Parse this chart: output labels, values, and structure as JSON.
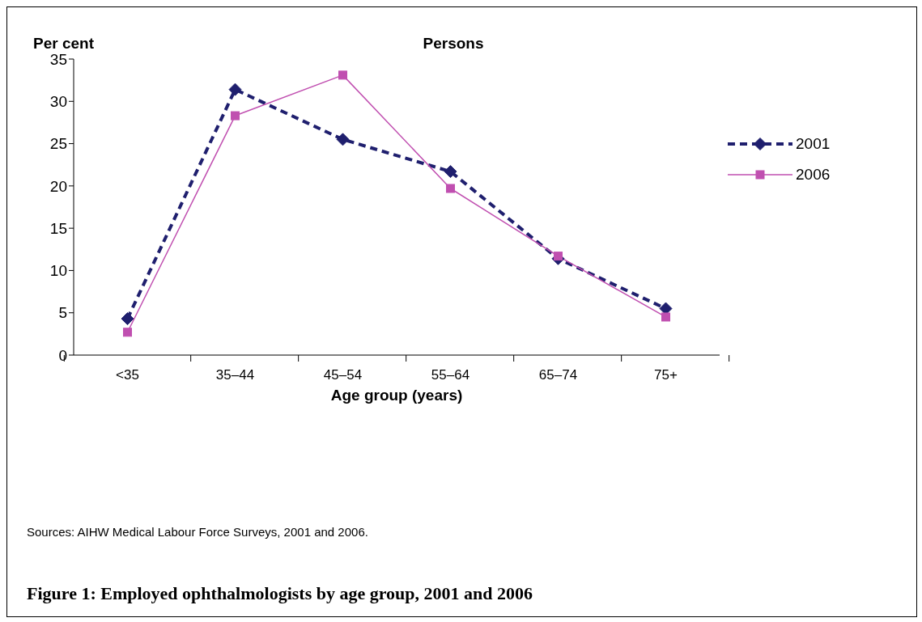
{
  "chart_data": {
    "type": "line",
    "title": "Persons",
    "ylabel": "Per cent",
    "xlabel": "Age group (years)",
    "categories": [
      "<35",
      "35–44",
      "45–54",
      "55–64",
      "65–74",
      "75+"
    ],
    "series": [
      {
        "name": "2001",
        "color": "#1f1f6e",
        "values": [
          4.3,
          31.4,
          25.5,
          21.7,
          11.4,
          5.5
        ],
        "marker": "diamond",
        "line_style": "dashed"
      },
      {
        "name": "2006",
        "color": "#c04fb0",
        "values": [
          2.7,
          28.3,
          33.1,
          19.7,
          11.7,
          4.5
        ],
        "marker": "square",
        "line_style": "solid"
      }
    ],
    "ylim": [
      0,
      35
    ],
    "yticks": [
      0,
      5,
      10,
      15,
      20,
      25,
      30,
      35
    ],
    "grid": false,
    "legend": "right",
    "annotations": [
      "Sources: AIHW Medical Labour Force Surveys, 2001 and 2006.",
      "Figure 1: Employed ophthalmologists by age group, 2001 and 2006"
    ]
  }
}
